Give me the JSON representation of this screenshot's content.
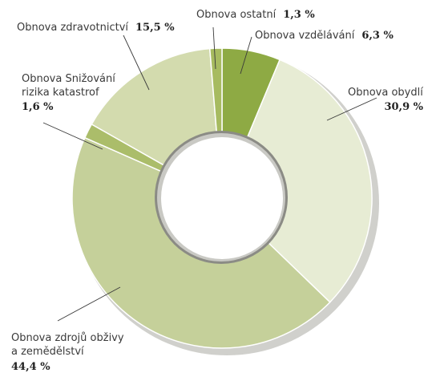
{
  "chart_data": {
    "type": "pie",
    "variant": "donut",
    "start": "top, clockwise",
    "categories": [
      "Obnova vzdělávání",
      "Obnova obydlí",
      "Obnova zdrojů obživy a zemědělství",
      "Obnova Snižování rizika katastrof",
      "Obnova zdravotnictví",
      "Obnova ostatní"
    ],
    "values": [
      6.3,
      30.9,
      44.4,
      1.6,
      15.5,
      1.3
    ],
    "value_labels": [
      "6,3 %",
      "30,9 %",
      "44,4 %",
      "1,6 %",
      "15,5 %",
      "1,3 %"
    ],
    "colors": [
      "#8eaa44",
      "#e7ecd4",
      "#c5d09a",
      "#abbd6a",
      "#d3dbae",
      "#a7bb60"
    ],
    "labels": {
      "vzdelavani": {
        "name": "Obnova vzdělávání",
        "value": "6,3 %"
      },
      "obydli": {
        "name": "Obnova obydlí",
        "value": "30,9 %"
      },
      "zivobyti": {
        "name_line1": "Obnova zdrojů obživy",
        "name_line2": "a zemědělství",
        "value": "44,4 %"
      },
      "rizika": {
        "name_line1": "Obnova Snižování",
        "name_line2": "rizika katastrof",
        "value": "1,6 %"
      },
      "zdravotnictvi": {
        "name": "Obnova zdravotnictví",
        "value": "15,5 %"
      },
      "ostatni": {
        "name": "Obnova ostatní",
        "value": "1,3 %"
      }
    }
  }
}
